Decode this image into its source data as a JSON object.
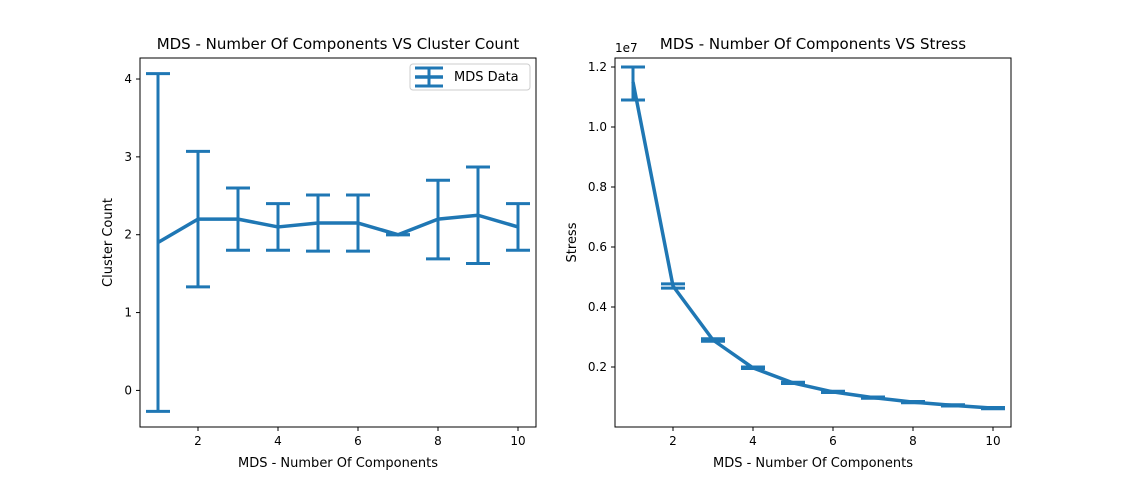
{
  "chart_data": [
    {
      "type": "line",
      "title": "MDS - Number Of Components VS Cluster Count",
      "xlabel": "MDS - Number Of Components",
      "ylabel": "Cluster Count",
      "xlim": [
        0.55,
        10.45
      ],
      "ylim": [
        -0.47,
        4.27
      ],
      "xticks": [
        2,
        4,
        6,
        8,
        10
      ],
      "yticks": [
        0,
        1,
        2,
        3,
        4
      ],
      "grid": false,
      "legend_placement": "top-right",
      "series": [
        {
          "name": "MDS Data",
          "color": "#1f77b4",
          "x": [
            1,
            2,
            3,
            4,
            5,
            6,
            7,
            8,
            9,
            10
          ],
          "y": [
            1.9,
            2.2,
            2.2,
            2.1,
            2.15,
            2.15,
            2.0,
            2.2,
            2.25,
            2.1
          ],
          "err_low": [
            -0.27,
            1.33,
            1.8,
            1.8,
            1.79,
            1.79,
            2.0,
            1.69,
            1.63,
            1.8
          ],
          "err_high": [
            4.07,
            3.07,
            2.6,
            2.4,
            2.51,
            2.51,
            2.0,
            2.7,
            2.87,
            2.4
          ]
        }
      ]
    },
    {
      "type": "line",
      "title": "MDS - Number Of Components VS Stress",
      "xlabel": "MDS - Number Of Components",
      "ylabel": "Stress",
      "scale_offset_label": "1e7",
      "xlim": [
        0.55,
        10.45
      ],
      "ylim": [
        0.0,
        1.23
      ],
      "xticks": [
        2,
        4,
        6,
        8,
        10
      ],
      "yticks": [
        0.2,
        0.4,
        0.6,
        0.8,
        1.0,
        1.2
      ],
      "grid": false,
      "series": [
        {
          "name": "",
          "color": "#1f77b4",
          "x": [
            1,
            2,
            3,
            4,
            5,
            6,
            7,
            8,
            9,
            10
          ],
          "y": [
            1.15,
            0.47,
            0.29,
            0.197,
            0.147,
            0.117,
            0.098,
            0.083,
            0.072,
            0.063
          ],
          "err_low": [
            1.09,
            0.463,
            0.286,
            0.195,
            0.145,
            0.115,
            0.096,
            0.081,
            0.07,
            0.061
          ],
          "err_high": [
            1.2,
            0.477,
            0.294,
            0.2,
            0.149,
            0.119,
            0.1,
            0.085,
            0.074,
            0.065
          ]
        }
      ]
    }
  ]
}
